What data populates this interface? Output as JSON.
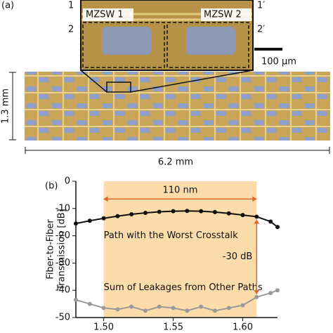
{
  "figure": {
    "panel": "(a)",
    "ports": [
      "1",
      "2",
      "1′",
      "2′"
    ],
    "switches": [
      "MZSW 1",
      "MZSW 2"
    ],
    "scale_bar": "100 μm",
    "height": "1.3 mm",
    "width": "6.2 mm"
  },
  "chart_data": {
    "type": "line",
    "panel": "(b)",
    "ylabel": [
      "Fiber-to-Fiber",
      "Transmission [dB]"
    ],
    "x": [
      1.48,
      1.49,
      1.5,
      1.51,
      1.52,
      1.53,
      1.54,
      1.55,
      1.56,
      1.57,
      1.58,
      1.59,
      1.6,
      1.61,
      1.62,
      1.625
    ],
    "series": [
      {
        "name": "Path with the Worst Crosstalk",
        "color": "#111111",
        "values": [
          -15.5,
          -14.5,
          -13.6,
          -12.8,
          -12.1,
          -11.6,
          -11.2,
          -11.0,
          -10.9,
          -11.0,
          -11.3,
          -11.8,
          -12.4,
          -13.0,
          -14.8,
          -16.8
        ]
      },
      {
        "name": "Sum of Leakages from Other Paths",
        "color": "#9a9a9a",
        "values": [
          -43.5,
          -45.0,
          -46.5,
          -47.0,
          -46.0,
          -47.5,
          -46.0,
          -46.5,
          -47.5,
          -46.0,
          -47.5,
          -46.5,
          -45.5,
          -42.5,
          -41.0,
          -40.0
        ]
      }
    ],
    "shade": [
      1.5,
      1.61
    ],
    "shade_color": "#fbdcaa",
    "shade_label": "110 nm",
    "gap_label": "-30 dB",
    "gap_color": "#e0672a",
    "xlim": [
      1.48,
      1.625
    ],
    "ylim": [
      -50,
      0
    ],
    "xticks": [
      {
        "value": 1.5,
        "label": "1.50"
      },
      {
        "value": 1.55,
        "label": "1.55"
      },
      {
        "value": 1.6,
        "label": "1.60"
      }
    ],
    "yticks": [
      0,
      -10,
      -20,
      -30,
      -40,
      -50
    ]
  }
}
